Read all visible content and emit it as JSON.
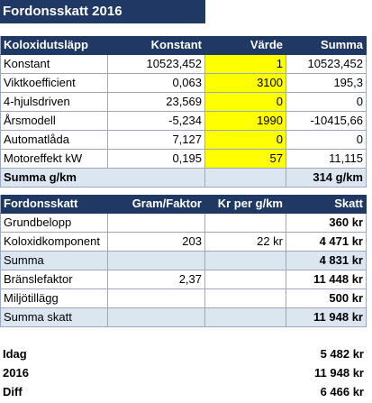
{
  "title": "Fordonsskatt 2016",
  "table1": {
    "headers": [
      "Koloxidutsläpp",
      "Konstant",
      "Värde",
      "Summa"
    ],
    "rows": [
      [
        "Konstant",
        "10523,452",
        "1",
        "10523,452"
      ],
      [
        "Viktkoefficient",
        "0,063",
        "3100",
        "195,3"
      ],
      [
        "4-hjulsdriven",
        "23,569",
        "0",
        "0"
      ],
      [
        "Årsmodell",
        "-5,234",
        "1990",
        "-10415,66"
      ],
      [
        "Automatlåda",
        "7,127",
        "0",
        "0"
      ],
      [
        "Motoreffekt kW",
        "0,195",
        "57",
        "11,115"
      ]
    ],
    "sum_label": "Summa g/km",
    "sum_value": "314 g/km"
  },
  "table2": {
    "headers": [
      "Fordonsskatt",
      "Gram/Faktor",
      "Kr per g/km",
      "Skatt"
    ],
    "rows": [
      [
        "Grundbelopp",
        "",
        "",
        "360 kr"
      ],
      [
        "Koloxidkomponent",
        "203",
        "22 kr",
        "4 471 kr"
      ],
      [
        "Summa",
        "",
        "",
        "4 831 kr"
      ],
      [
        "Bränslefaktor",
        "2,37",
        "",
        "11 448 kr"
      ],
      [
        "Miljötillägg",
        "",
        "",
        "500 kr"
      ],
      [
        "Summa skatt",
        "",
        "",
        "11 948 kr"
      ]
    ]
  },
  "summary": [
    {
      "label": "Idag",
      "value": "5 482 kr"
    },
    {
      "label": "2016",
      "value": "11 948 kr"
    },
    {
      "label": "Diff",
      "value": "6 466 kr"
    }
  ],
  "colors": {
    "header_bg": "#1f3864",
    "input_bg": "#ffff00",
    "sum_bg": "#dce6f1"
  }
}
